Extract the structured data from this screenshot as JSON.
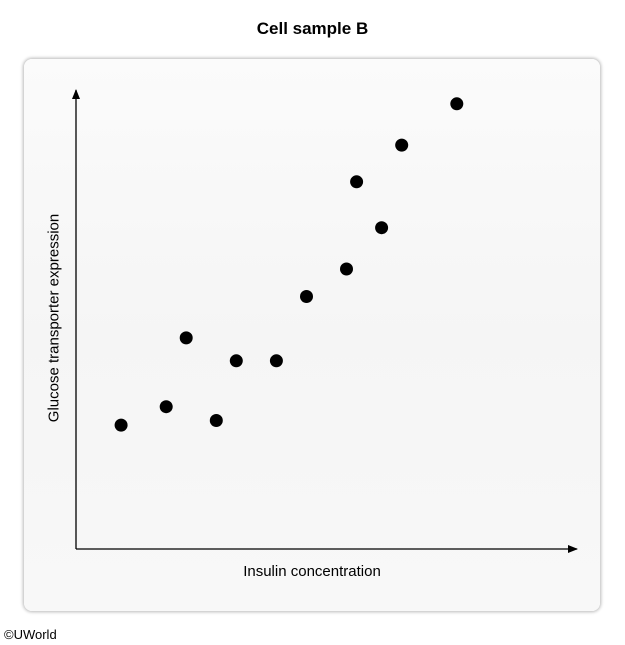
{
  "chart_data": {
    "type": "scatter",
    "title": "Cell sample B",
    "xlabel": "Insulin concentration",
    "ylabel": "Glucose transporter expression",
    "grid": false,
    "legend": "none",
    "point_color": "#000000",
    "xlim": [
      0,
      100
    ],
    "ylim": [
      0,
      100
    ],
    "points": [
      {
        "x": 9,
        "y": 27
      },
      {
        "x": 18,
        "y": 31
      },
      {
        "x": 22,
        "y": 46
      },
      {
        "x": 28,
        "y": 28
      },
      {
        "x": 32,
        "y": 41
      },
      {
        "x": 40,
        "y": 41
      },
      {
        "x": 46,
        "y": 55
      },
      {
        "x": 54,
        "y": 61
      },
      {
        "x": 56,
        "y": 80
      },
      {
        "x": 61,
        "y": 70
      },
      {
        "x": 65,
        "y": 88
      },
      {
        "x": 76,
        "y": 97
      }
    ]
  },
  "credit": "©UWorld"
}
